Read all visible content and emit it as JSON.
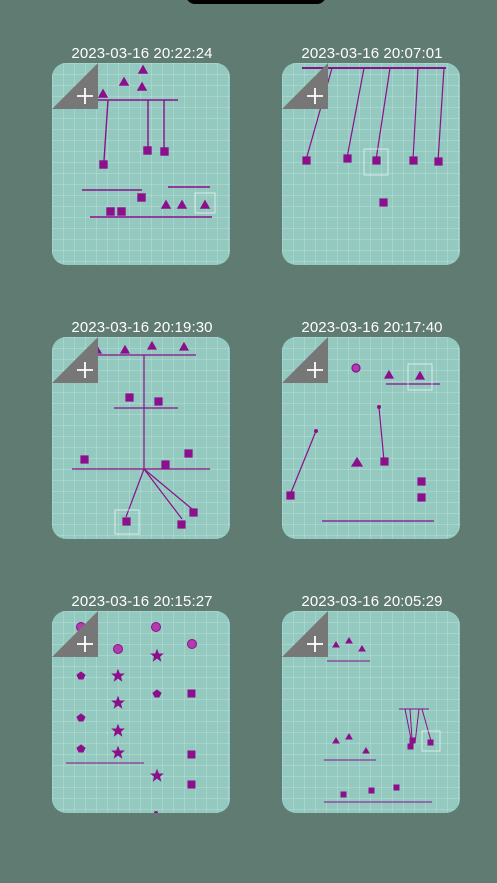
{
  "colors": {
    "background": "#5f7b72",
    "card": "#93c9bf",
    "shape": "#8c0f8c",
    "corner": "#777777"
  },
  "icons": {
    "add": "plus-icon"
  },
  "cards": [
    {
      "timestamp": "2023-03-16 20:22:24"
    },
    {
      "timestamp": "2023-03-16 20:07:01"
    },
    {
      "timestamp": "2023-03-16 20:19:30"
    },
    {
      "timestamp": "2023-03-16 20:17:40"
    },
    {
      "timestamp": "2023-03-16 20:15:27"
    },
    {
      "timestamp": "2023-03-16 20:05:29"
    }
  ]
}
